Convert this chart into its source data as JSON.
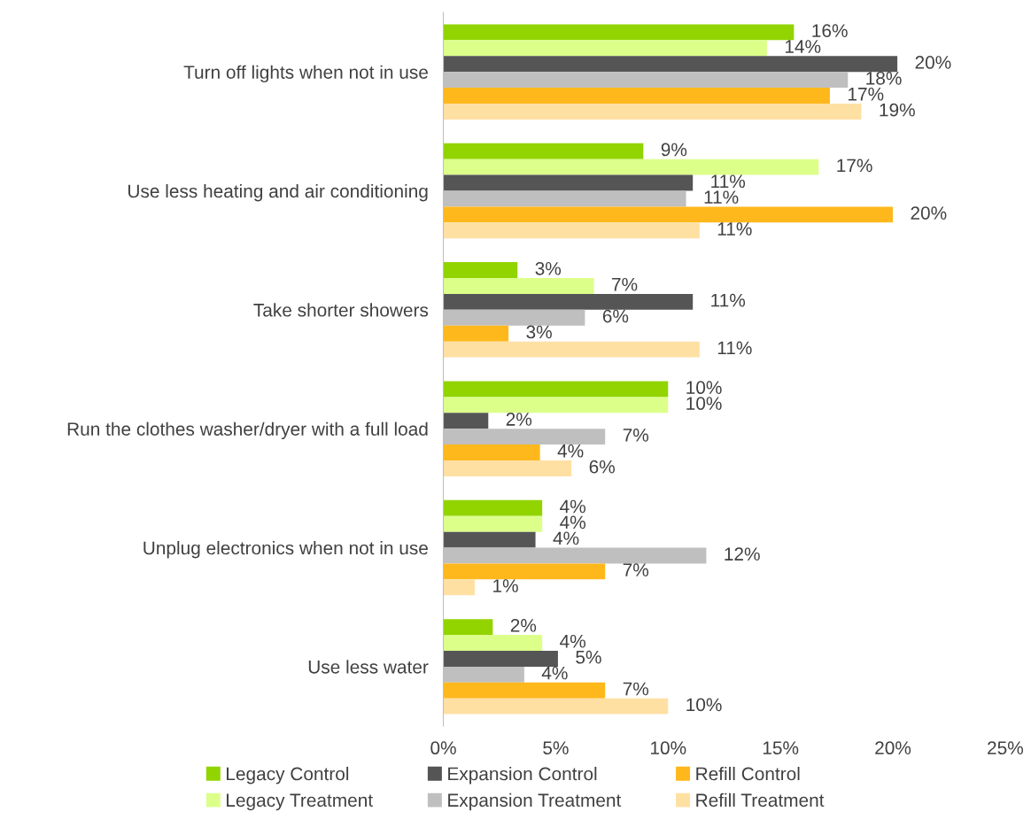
{
  "chart_data": {
    "type": "bar",
    "orientation": "horizontal",
    "categories": [
      "Turn off lights when not in use",
      "Use less heating and air conditioning",
      "Take shorter showers",
      "Run the clothes washer/dryer with a full load",
      "Unplug electronics when not in use",
      "Use less water"
    ],
    "series": [
      {
        "name": "Legacy Control",
        "color": "#92d400",
        "values": [
          15.6,
          8.9,
          3.3,
          10.0,
          4.4,
          2.2
        ],
        "value_labels": [
          "16%",
          "9%",
          "3%",
          "10%",
          "4%",
          "2%"
        ]
      },
      {
        "name": "Legacy Treatment",
        "color": "#dcff8a",
        "values": [
          14.4,
          16.7,
          6.7,
          10.0,
          4.4,
          4.4
        ],
        "value_labels": [
          "14%",
          "17%",
          "7%",
          "10%",
          "4%",
          "4%"
        ]
      },
      {
        "name": "Expansion Control",
        "color": "#555555",
        "values": [
          20.2,
          11.1,
          11.1,
          2.0,
          4.1,
          5.1
        ],
        "value_labels": [
          "20%",
          "11%",
          "11%",
          "2%",
          "4%",
          "5%"
        ]
      },
      {
        "name": "Expansion Treatment",
        "color": "#bfbfbf",
        "values": [
          18.0,
          10.8,
          6.3,
          7.2,
          11.7,
          3.6
        ],
        "value_labels": [
          "18%",
          "11%",
          "6%",
          "7%",
          "12%",
          "4%"
        ]
      },
      {
        "name": "Refill Control",
        "color": "#ffb81c",
        "values": [
          17.2,
          20.0,
          2.9,
          4.3,
          7.2,
          7.2
        ],
        "value_labels": [
          "17%",
          "20%",
          "3%",
          "4%",
          "7%",
          "7%"
        ]
      },
      {
        "name": "Refill Treatment",
        "color": "#ffe0a3",
        "values": [
          18.6,
          11.4,
          11.4,
          5.7,
          1.4,
          10.0
        ],
        "value_labels": [
          "19%",
          "11%",
          "11%",
          "6%",
          "1%",
          "10%"
        ]
      }
    ],
    "xlim": [
      0,
      25
    ],
    "xticks": [
      {
        "value": 0,
        "label": "0%"
      },
      {
        "value": 5,
        "label": "5%"
      },
      {
        "value": 10,
        "label": "10%"
      },
      {
        "value": 15,
        "label": "15%"
      },
      {
        "value": 20,
        "label": "20%"
      },
      {
        "value": 25,
        "label": "25%"
      }
    ],
    "grid": false,
    "legend": "bottom"
  }
}
